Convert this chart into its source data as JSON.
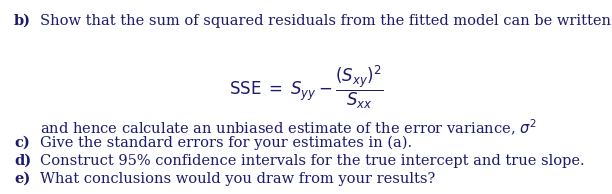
{
  "background_color": "#ffffff",
  "text_color": "#1a1a6e",
  "figsize": [
    6.12,
    1.94
  ],
  "dpi": 100,
  "font_size": 10.5,
  "formula_font_size": 12,
  "lines": {
    "b_label": "b)",
    "b_text": "Show that the sum of squared residuals from the fitted model can be written as",
    "formula": "$\\mathrm{SSE}\\; =\\; S_{yy} - \\dfrac{(S_{xy})^2}{S_{xx}}$",
    "and_text": "and hence calculate an unbiased estimate of the error variance, $\\sigma^2$",
    "c_label": "c)",
    "c_text": "Give the standard errors for your estimates in (a).",
    "d_label": "d)",
    "d_text": "Construct 95% confidence intervals for the true intercept and true slope.",
    "e_label": "e)",
    "e_text": "What conclusions would you draw from your results?"
  }
}
